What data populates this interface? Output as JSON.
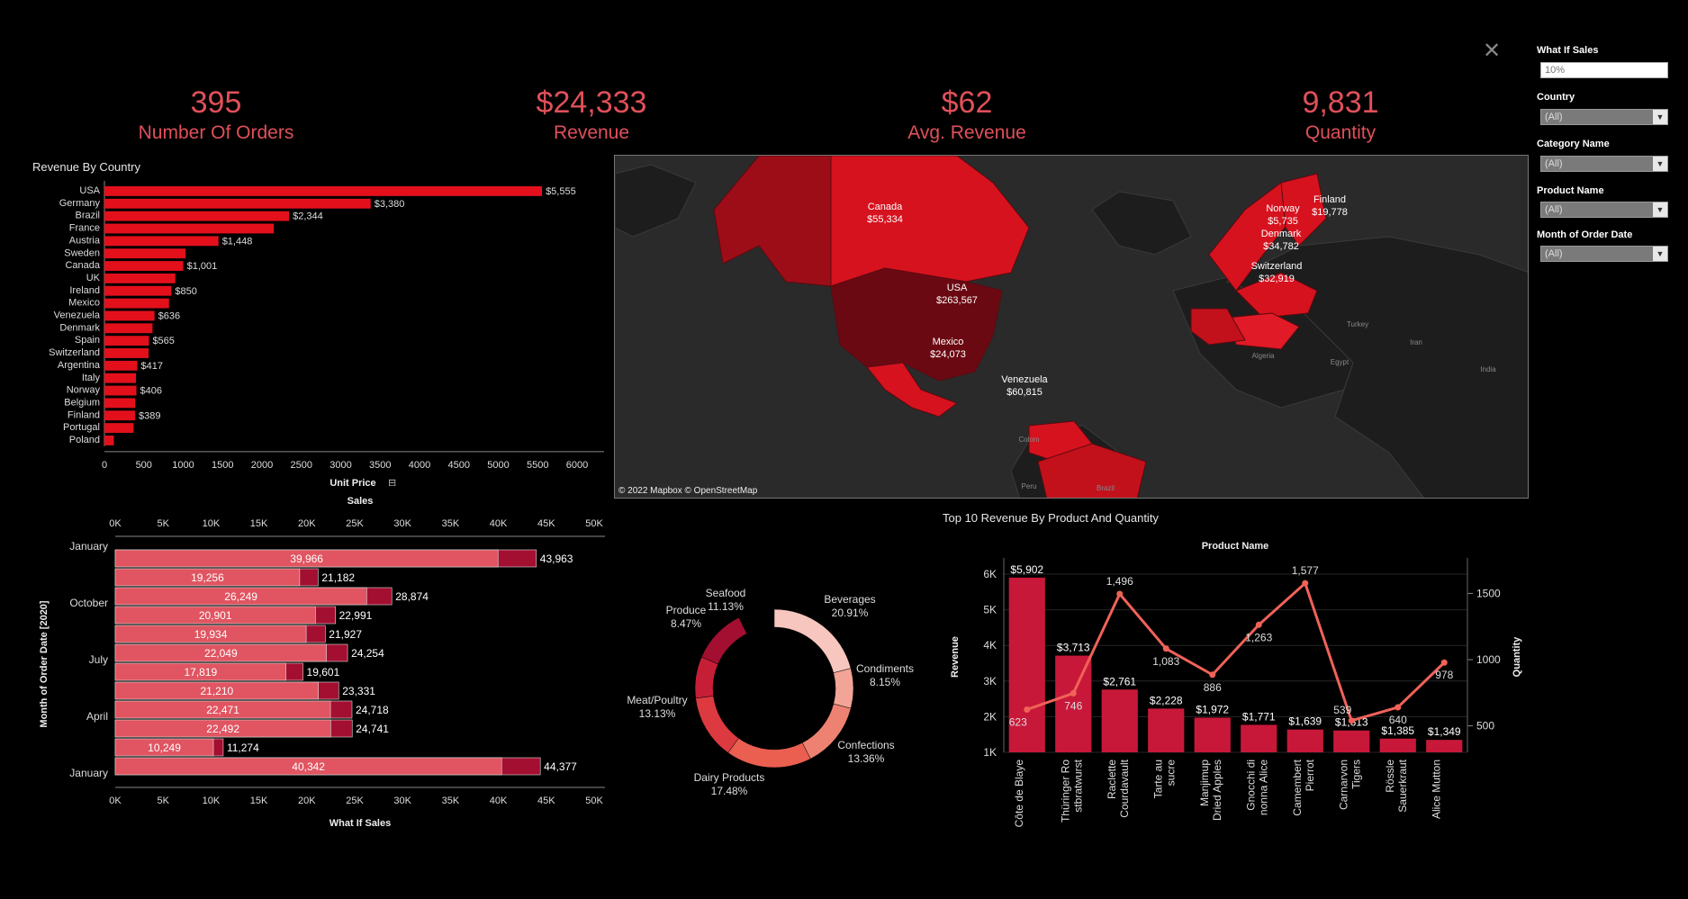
{
  "kpis": [
    {
      "value": "395",
      "label": "Number Of Orders"
    },
    {
      "value": "$24,333",
      "label": "Revenue"
    },
    {
      "value": "$62",
      "label": "Avg. Revenue"
    },
    {
      "value": "9,831",
      "label": "Quantity"
    }
  ],
  "filters": {
    "what_if_label": "What If Sales",
    "what_if_placeholder": "10%",
    "dropdowns": [
      {
        "label": "Country",
        "value": "(All)"
      },
      {
        "label": "Category Name",
        "value": "(All)"
      },
      {
        "label": "Product Name",
        "value": "(All)"
      },
      {
        "label": "Month of Order Date",
        "value": "(All)"
      }
    ]
  },
  "close_glyph": "✕",
  "titles": {
    "revenue_by_country": "Revenue By Country",
    "top10": "Top 10 Revenue By Product And Quantity"
  },
  "map": {
    "attribution": "© 2022 Mapbox © OpenStreetMap",
    "labels": [
      {
        "name": "Canada",
        "value": "$55,334"
      },
      {
        "name": "USA",
        "value": "$263,567"
      },
      {
        "name": "Mexico",
        "value": "$24,073"
      },
      {
        "name": "Venezuela",
        "value": "$60,815"
      },
      {
        "name": "Norway",
        "value": "$5,735"
      },
      {
        "name": "Finland",
        "value": "$19,778"
      },
      {
        "name": "Denmark",
        "value": "$34,782"
      },
      {
        "name": "Switzerland",
        "value": "$32,919"
      }
    ],
    "basemap_labels": [
      "Turkey",
      "Iran",
      "Algeria",
      "Egypt",
      "India",
      "Colom",
      "Peru",
      "Brazil"
    ]
  },
  "chart_data": [
    {
      "type": "bar",
      "orientation": "horizontal",
      "title": "Revenue By Country",
      "xlabel": "Unit Price",
      "categories": [
        "USA",
        "Germany",
        "Brazil",
        "France",
        "Austria",
        "Sweden",
        "Canada",
        "UK",
        "Ireland",
        "Mexico",
        "Venezuela",
        "Denmark",
        "Spain",
        "Switzerland",
        "Argentina",
        "Italy",
        "Norway",
        "Belgium",
        "Finland",
        "Portugal",
        "Poland"
      ],
      "values": [
        5555,
        3380,
        2344,
        2150,
        1448,
        1030,
        1001,
        900,
        850,
        820,
        636,
        610,
        565,
        560,
        417,
        400,
        406,
        390,
        389,
        370,
        120
      ],
      "data_labels": [
        "$5,555",
        "$3,380",
        "$2,344",
        "",
        "$1,448",
        "",
        "$1,001",
        "",
        "$850",
        "",
        "$636",
        "",
        "$565",
        "",
        "$417",
        "",
        "$406",
        "",
        "$389",
        "",
        ""
      ],
      "xticks": [
        "0",
        "500",
        "1000",
        "1500",
        "2000",
        "2500",
        "3000",
        "3500",
        "4000",
        "4500",
        "5000",
        "5500",
        "6000"
      ],
      "xlim": [
        0,
        6000
      ],
      "bar_color": "#e3101c"
    },
    {
      "type": "bar",
      "orientation": "horizontal",
      "title_top": "Sales",
      "xlabel": "What If Sales",
      "ylabel": "Month of Order Date [2020]",
      "y_tick_labels": [
        "January",
        "October",
        "July",
        "April",
        "January"
      ],
      "series": [
        {
          "name": "Sales",
          "values": [
            39966,
            19256,
            26249,
            20901,
            19934,
            22049,
            17819,
            21210,
            22471,
            22492,
            10249,
            40342
          ]
        },
        {
          "name": "What If Sales",
          "values": [
            43963,
            21182,
            28874,
            22991,
            21927,
            24254,
            19601,
            23331,
            24718,
            24741,
            11274,
            44377
          ]
        }
      ],
      "sales_labels": [
        "39,966",
        "19,256",
        "26,249",
        "20,901",
        "19,934",
        "22,049",
        "17,819",
        "21,210",
        "22,471",
        "22,492",
        "10,249",
        "40,342"
      ],
      "whatif_labels": [
        "43,963",
        "21,182",
        "28,874",
        "22,991",
        "21,927",
        "24,254",
        "19,601",
        "23,331",
        "24,718",
        "24,741",
        "11,274",
        "44,377"
      ],
      "xticks": [
        "0K",
        "5K",
        "10K",
        "15K",
        "20K",
        "25K",
        "30K",
        "35K",
        "40K",
        "45K",
        "50K"
      ],
      "xlim": [
        0,
        50000
      ]
    },
    {
      "type": "pie",
      "donut": true,
      "slices": [
        {
          "name": "Beverages",
          "pct": 20.91,
          "label": "20.91%",
          "color": "#f7c6bf"
        },
        {
          "name": "Condiments",
          "pct": 8.15,
          "label": "8.15%",
          "color": "#f2a497"
        },
        {
          "name": "Confections",
          "pct": 13.36,
          "label": "13.36%",
          "color": "#ee8272"
        },
        {
          "name": "Dairy Products",
          "pct": 17.48,
          "label": "17.48%",
          "color": "#ea5f50"
        },
        {
          "name": "Meat/Poultry",
          "pct": 13.13,
          "label": "13.13%",
          "color": "#dc3a40"
        },
        {
          "name": "Produce",
          "pct": 8.47,
          "label": "8.47%",
          "color": "#c71e38"
        },
        {
          "name": "Seafood",
          "pct": 11.13,
          "label": "11.13%",
          "color": "#a30f30"
        }
      ]
    },
    {
      "type": "bar",
      "subtitle": "Product Name",
      "ylabel": "Revenue",
      "y2label": "Quantity",
      "categories": [
        "Côte de Blaye",
        "Thüringer Rostbratwurst",
        "Raclette Courdavault",
        "Tarte au sucre",
        "Manjimup Dried Apples",
        "Gnocchi di nonna Alice",
        "Camembert Pierrot",
        "Carnarvon Tigers",
        "Rössle Sauerkraut",
        "Alice Mutton"
      ],
      "category_lines": [
        [
          "Côte de Blaye"
        ],
        [
          "Thüringer Ro",
          "stbratwurst"
        ],
        [
          "Raclette",
          "Courdavault"
        ],
        [
          "Tarte au",
          "sucre"
        ],
        [
          "Manjimup",
          "Dried Apples"
        ],
        [
          "Gnocchi di",
          "nonna Alice"
        ],
        [
          "Camembert",
          "Pierrot"
        ],
        [
          "Carnarvon",
          "Tigers"
        ],
        [
          "Rössle",
          "Sauerkraut"
        ],
        [
          "Alice Mutton"
        ]
      ],
      "revenue": [
        5902,
        3713,
        2761,
        2228,
        1972,
        1771,
        1639,
        1613,
        1385,
        1349
      ],
      "revenue_labels": [
        "$5,902",
        "$3,713",
        "$2,761",
        "$2,228",
        "$1,972",
        "$1,771",
        "$1,639",
        "$1,613",
        "$1,385",
        "$1,349"
      ],
      "quantity": [
        623,
        746,
        1496,
        1083,
        886,
        1263,
        1577,
        539,
        640,
        978
      ],
      "quantity_labels": [
        "623",
        "746",
        "1,496",
        "1,083",
        "886",
        "1,263",
        "1,577",
        "539",
        "640",
        "978"
      ],
      "yticks": [
        "1K",
        "2K",
        "3K",
        "4K",
        "5K",
        "6K"
      ],
      "y2ticks": [
        "500",
        "1000",
        "1500"
      ],
      "ylim": [
        1000,
        6000
      ],
      "y2lim": [
        300,
        1700
      ]
    }
  ]
}
